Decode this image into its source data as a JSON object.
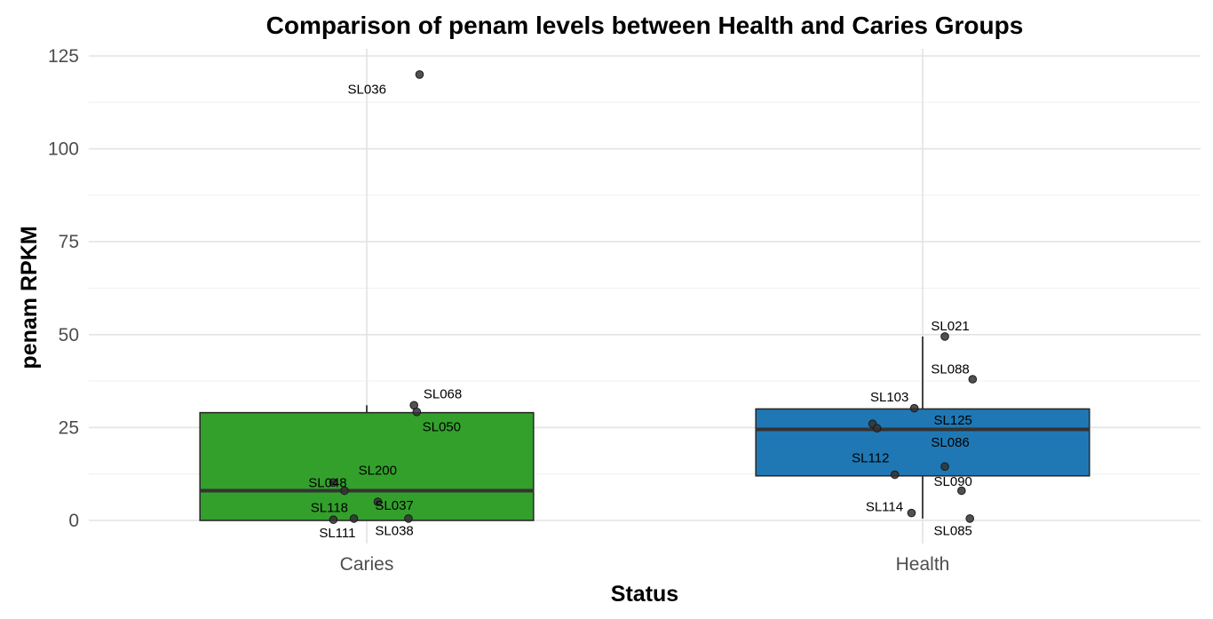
{
  "chart_data": {
    "type": "box",
    "title": "Comparison of penam levels between Health and Caries Groups",
    "xlabel": "Status",
    "ylabel": "penam RPKM",
    "categories": [
      "Caries",
      "Health"
    ],
    "ylim": [
      -5,
      126
    ],
    "yticks": [
      0,
      25,
      50,
      75,
      100,
      125
    ],
    "grid": true,
    "boxes": [
      {
        "category": "Caries",
        "color": "#33a02c",
        "q1": 0,
        "median": 8,
        "q3": 29,
        "whisker_low": 0,
        "whisker_high": 31
      },
      {
        "category": "Health",
        "color": "#1f78b4",
        "q1": 12,
        "median": 24.5,
        "q3": 30,
        "whisker_low": 0.5,
        "whisker_high": 49.5
      }
    ],
    "points": [
      {
        "category": "Caries",
        "id": "SL036",
        "jitter": 0.095,
        "y": 120,
        "label_dx": -0.06,
        "label_dy": -4,
        "label_anchor": "end"
      },
      {
        "category": "Caries",
        "id": "SL068",
        "jitter": 0.085,
        "y": 31,
        "label_dx": 0.017,
        "label_dy": 3,
        "label_anchor": "start"
      },
      {
        "category": "Caries",
        "id": "SL050",
        "jitter": 0.09,
        "y": 29.2,
        "label_dx": 0.01,
        "label_dy": -4,
        "label_anchor": "start"
      },
      {
        "category": "Caries",
        "id": "SL048",
        "jitter": -0.06,
        "y": 10.2,
        "label_dx": -0.045,
        "label_dy": 0,
        "label_anchor": "start"
      },
      {
        "category": "Caries",
        "id": "SL200",
        "jitter": -0.04,
        "y": 8,
        "label_dx": 0.025,
        "label_dy": 5.5,
        "label_anchor": "start"
      },
      {
        "category": "Caries",
        "id": "SL037",
        "jitter": 0.02,
        "y": 5,
        "label_dx": -0.005,
        "label_dy": -0.9,
        "label_anchor": "start"
      },
      {
        "category": "Caries",
        "id": "SL118",
        "jitter": -0.023,
        "y": 0.5,
        "label_dx": -0.078,
        "label_dy": 3,
        "label_anchor": "start"
      },
      {
        "category": "Caries",
        "id": "SL111",
        "jitter": -0.06,
        "y": 0.2,
        "label_dx": 0.04,
        "label_dy": -3.5,
        "label_anchor": "end"
      },
      {
        "category": "Caries",
        "id": "SL038",
        "jitter": 0.075,
        "y": 0.5,
        "label_dx": -0.06,
        "label_dy": -3.3,
        "label_anchor": "start"
      },
      {
        "category": "Health",
        "id": "SL021",
        "jitter": 0.04,
        "y": 49.5,
        "label_dx": -0.025,
        "label_dy": 2.8,
        "label_anchor": "start"
      },
      {
        "category": "Health",
        "id": "SL088",
        "jitter": 0.09,
        "y": 38,
        "label_dx": -0.075,
        "label_dy": 2.8,
        "label_anchor": "start"
      },
      {
        "category": "Health",
        "id": "SL103",
        "jitter": -0.015,
        "y": 30.2,
        "label_dx": -0.01,
        "label_dy": 3,
        "label_anchor": "end"
      },
      {
        "category": "Health",
        "id": "SL125",
        "jitter": -0.09,
        "y": 26,
        "label_dx": 0.11,
        "label_dy": 1,
        "label_anchor": "start"
      },
      {
        "category": "Health",
        "id": "SL125b",
        "jitter": -0.082,
        "y": 24.8,
        "label_dx": 0,
        "label_dy": 0,
        "label_anchor": "none"
      },
      {
        "category": "Health",
        "id": "SL086",
        "jitter": 0.04,
        "y": 14.5,
        "label_dx": -0.025,
        "label_dy": 6.5,
        "label_anchor": "start"
      },
      {
        "category": "Health",
        "id": "SL112",
        "jitter": -0.05,
        "y": 12.3,
        "label_dx": -0.01,
        "label_dy": 4.5,
        "label_anchor": "end"
      },
      {
        "category": "Health",
        "id": "SL090",
        "jitter": 0.07,
        "y": 8,
        "label_dx": -0.05,
        "label_dy": 2.5,
        "label_anchor": "start"
      },
      {
        "category": "Health",
        "id": "SL114",
        "jitter": -0.02,
        "y": 2,
        "label_dx": -0.015,
        "label_dy": 1.7,
        "label_anchor": "end"
      },
      {
        "category": "Health",
        "id": "SL085",
        "jitter": 0.085,
        "y": 0.5,
        "label_dx": -0.065,
        "label_dy": -3.3,
        "label_anchor": "start"
      }
    ]
  }
}
